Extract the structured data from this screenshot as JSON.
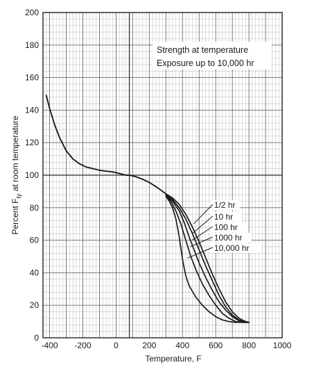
{
  "chart_data": {
    "type": "line",
    "title": "",
    "annotations": [
      "Strength at temperature",
      "Exposure up to 10,000 hr"
    ],
    "xlabel": "Temperature, F",
    "ylabel": "Percent Fty at room temperature",
    "ylabel_parts": {
      "before": "Percent F",
      "sub": "ty",
      "after": " at room temperature"
    },
    "xlim": [
      -440,
      1000
    ],
    "ylim": [
      0,
      200
    ],
    "x_ticks": [
      -400,
      -200,
      0,
      200,
      400,
      600,
      800,
      1000
    ],
    "y_ticks": [
      0,
      20,
      40,
      60,
      80,
      100,
      120,
      140,
      160,
      180,
      200
    ],
    "grid": true,
    "legend_placement": "inline-right",
    "legend_labels": [
      "1/2 hr",
      "10 hr",
      "100 hr",
      "1000 hr",
      "10,000 hr"
    ],
    "common_curve": {
      "x": [
        -420,
        -400,
        -370,
        -340,
        -300,
        -260,
        -220,
        -180,
        -140,
        -100,
        -60,
        -20,
        20,
        60,
        80,
        120,
        160,
        200,
        240,
        280,
        300
      ],
      "y": [
        149,
        141,
        131,
        123,
        115,
        110,
        107,
        105,
        104,
        103,
        102.5,
        102,
        101,
        100,
        100,
        99,
        97.5,
        95.5,
        93,
        90,
        88.5
      ]
    },
    "series": [
      {
        "name": "1/2 hr",
        "x": [
          300,
          340,
          380,
          420,
          460,
          500,
          540,
          580,
          620,
          660,
          700,
          740,
          780,
          800
        ],
        "y": [
          88.5,
          86,
          82,
          76,
          68,
          59,
          49,
          39,
          30,
          22,
          16,
          12,
          10,
          9.5
        ]
      },
      {
        "name": "10 hr",
        "x": [
          300,
          340,
          380,
          420,
          460,
          500,
          540,
          580,
          620,
          660,
          700,
          740,
          780,
          800
        ],
        "y": [
          88,
          85,
          80,
          73,
          64,
          54,
          44,
          35,
          26,
          19,
          14,
          11,
          9.5,
          9.5
        ]
      },
      {
        "name": "100 hr",
        "x": [
          300,
          340,
          380,
          410,
          440,
          470,
          500,
          540,
          580,
          620,
          660,
          700,
          740,
          780,
          800
        ],
        "y": [
          88,
          84,
          78,
          71,
          62,
          54,
          46,
          37,
          29,
          22,
          17,
          13,
          10.5,
          9.5,
          9.5
        ]
      },
      {
        "name": "1000 hr",
        "x": [
          300,
          330,
          360,
          390,
          420,
          450,
          480,
          520,
          560,
          600,
          640,
          680,
          720,
          760,
          800
        ],
        "y": [
          87.5,
          84,
          78,
          70,
          60,
          50,
          42,
          33,
          26,
          20,
          15,
          12,
          10,
          9.5,
          9.5
        ]
      },
      {
        "name": "10,000 hr",
        "x": [
          300,
          320,
          340,
          360,
          380,
          400,
          420,
          440,
          480,
          520,
          560,
          600,
          640,
          680,
          720,
          760,
          800
        ],
        "y": [
          87,
          84,
          80,
          73,
          62,
          48,
          38,
          32,
          25,
          20,
          16,
          13,
          11,
          10,
          9.5,
          9.5,
          9.5
        ]
      }
    ]
  }
}
